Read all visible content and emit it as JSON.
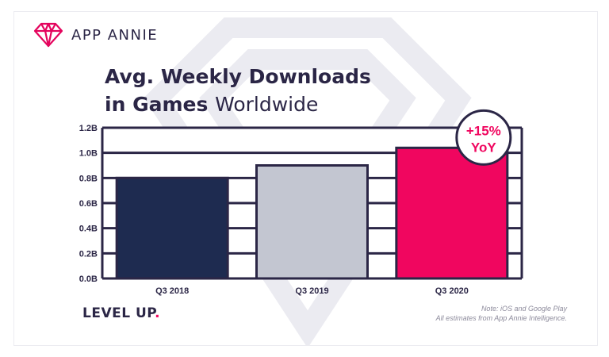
{
  "brand": {
    "name": "APP ANNIE"
  },
  "title": {
    "bold": "Avg. Weekly Downloads",
    "bold2": "in Games",
    "light": "Worldwide"
  },
  "badge": {
    "line1": "+15%",
    "line2": "YoY"
  },
  "footer": {
    "tagline": "LEVEL UP",
    "tagline_dot": ".",
    "note_line1": "Note: iOS and Google Play",
    "note_line2": "All estimates from App Annie Intelligence."
  },
  "colors": {
    "navy": "#2b2646",
    "accent": "#f0065f",
    "bar_2018": "#1e2b50",
    "bar_2019": "#c3c6d1",
    "bar_2020": "#f0065f"
  },
  "chart_data": {
    "type": "bar",
    "categories": [
      "Q3 2018",
      "Q3 2019",
      "Q3 2020"
    ],
    "values": [
      0.8,
      0.9,
      1.04
    ],
    "ylim": [
      0,
      1.2
    ],
    "yticks": [
      0,
      0.2,
      0.4,
      0.6,
      0.8,
      1.0,
      1.2
    ],
    "ytick_labels": [
      "0.0B",
      "0.2B",
      "0.4B",
      "0.6B",
      "0.8B",
      "1.0B",
      "1.2B"
    ],
    "grid": true,
    "annotation": "+15% YoY"
  }
}
